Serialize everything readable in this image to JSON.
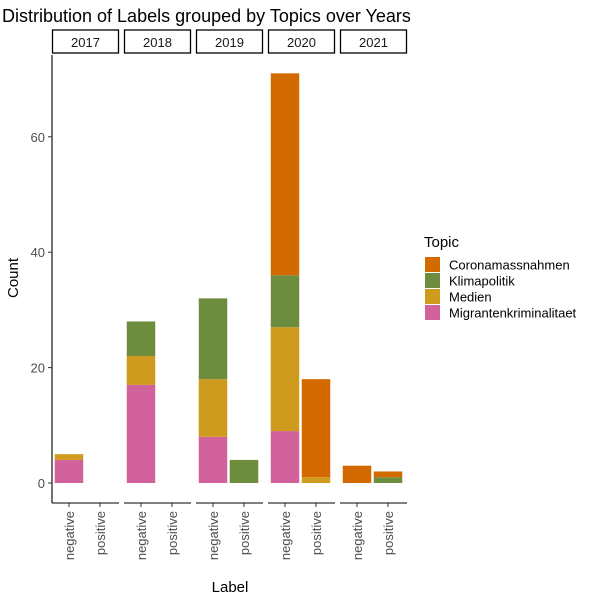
{
  "chart_data": {
    "type": "bar",
    "stacked": true,
    "faceted_by": "year",
    "title": "Distribution of Labels grouped by Topics over Years",
    "xlabel": "Label",
    "ylabel": "Count",
    "ylim": [
      0,
      73
    ],
    "y_ticks": [
      0,
      20,
      40,
      60
    ],
    "grid": false,
    "categories": [
      "negative",
      "positive"
    ],
    "facets": [
      "2017",
      "2018",
      "2019",
      "2020",
      "2021"
    ],
    "legend": {
      "title": "Topic",
      "placement": "right",
      "entries": [
        "Coronamassnahmen",
        "Klimapolitik",
        "Medien",
        "Migrantenkriminalitaet"
      ]
    },
    "series": [
      {
        "name": "Migrantenkriminalitaet",
        "color": "#D1629B",
        "values": {
          "2017": [
            4,
            0
          ],
          "2018": [
            17,
            0
          ],
          "2019": [
            8,
            0
          ],
          "2020": [
            9,
            0
          ],
          "2021": [
            0,
            0
          ]
        }
      },
      {
        "name": "Medien",
        "color": "#CF9B1F",
        "values": {
          "2017": [
            1,
            0
          ],
          "2018": [
            5,
            0
          ],
          "2019": [
            10,
            0
          ],
          "2020": [
            18,
            1
          ],
          "2021": [
            0,
            0
          ]
        }
      },
      {
        "name": "Klimapolitik",
        "color": "#6E8C3D",
        "values": {
          "2017": [
            0,
            0
          ],
          "2018": [
            6,
            0
          ],
          "2019": [
            14,
            4
          ],
          "2020": [
            9,
            0
          ],
          "2021": [
            0,
            1
          ]
        }
      },
      {
        "name": "Coronamassnahmen",
        "color": "#D26A00",
        "values": {
          "2017": [
            0,
            0
          ],
          "2018": [
            0,
            0
          ],
          "2019": [
            0,
            0
          ],
          "2020": [
            35,
            17
          ],
          "2021": [
            3,
            1
          ]
        }
      }
    ]
  }
}
